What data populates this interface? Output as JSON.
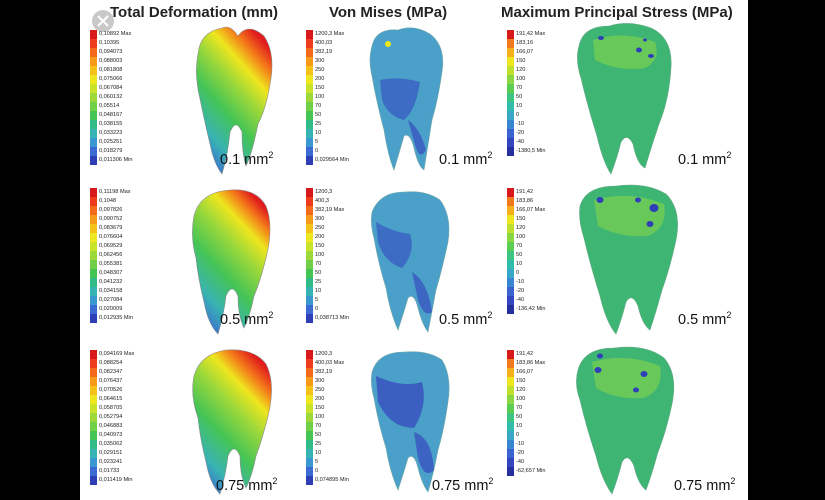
{
  "columns": [
    {
      "title": "Total Deformation (mm)"
    },
    {
      "title": "Von Mises (MPa)"
    },
    {
      "title": "Maximum Principal Stress (MPa)"
    }
  ],
  "area_unit_sup": "2",
  "rows": [
    {
      "area_value": "0.1 mm"
    },
    {
      "area_value": "0.5 mm"
    },
    {
      "area_value": "0.75 mm"
    }
  ],
  "legends": {
    "deformation": [
      [
        "0,10892 Max",
        "0,10395",
        "0,094073",
        "0,088003",
        "0,081808",
        "0,075066",
        "0,067084",
        "0,060132",
        "0,05514",
        "0,048167",
        "0,038155",
        "0,033223",
        "0,025251",
        "0,018279",
        "0,011306 Min"
      ],
      [
        "0,11198 Max",
        "0,1048",
        "0,097826",
        "0,090752",
        "0,083679",
        "0,076604",
        "0,069529",
        "0,062456",
        "0,055381",
        "0,048307",
        "0,041232",
        "0,034158",
        "0,027084",
        "0,020009",
        "0,012935 Min"
      ],
      [
        "0,094169 Max",
        "0,088254",
        "0,082347",
        "0,076437",
        "0,070526",
        "0,064615",
        "0,058705",
        "0,052794",
        "0,046883",
        "0,040973",
        "0,035062",
        "0,029151",
        "0,023241",
        "0,01733",
        "0,011419 Min"
      ]
    ],
    "vonmises": [
      [
        "1200,3 Max",
        "400,03",
        "382,19",
        "300",
        "250",
        "200",
        "150",
        "100",
        "70",
        "50",
        "25",
        "10",
        "5",
        "0",
        "0,029564 Min"
      ],
      [
        "1200,3",
        "400,3",
        "382,19 Max",
        "300",
        "250",
        "200",
        "150",
        "100",
        "70",
        "50",
        "25",
        "10",
        "5",
        "0",
        "0,038713 Min"
      ],
      [
        "1200,3",
        "400,03 Max",
        "382,19",
        "300",
        "250",
        "200",
        "150",
        "100",
        "70",
        "50",
        "25",
        "10",
        "5",
        "0",
        "0,074895 Min"
      ]
    ],
    "principal": [
      [
        "191,42 Max",
        "183,16",
        "166,07",
        "150",
        "120",
        "100",
        "70",
        "50",
        "10",
        "0",
        "-10",
        "-20",
        "-40",
        "-1380,5 Min"
      ],
      [
        "191,42",
        "183,86",
        "166,07 Max",
        "150",
        "120",
        "100",
        "70",
        "50",
        "10",
        "0",
        "-10",
        "-20",
        "-40",
        "-136,42 Min"
      ],
      [
        "191,42",
        "183,86 Max",
        "166,07",
        "150",
        "120",
        "100",
        "70",
        "50",
        "10",
        "0",
        "-10",
        "-20",
        "-40",
        "-62,657 Min"
      ]
    ]
  },
  "legend_colors": [
    "#d7191c",
    "#ee3b1c",
    "#f36b1a",
    "#f79a17",
    "#f6c21a",
    "#eee61e",
    "#c9e22a",
    "#9cd83a",
    "#6fcf47",
    "#45c456",
    "#2fba86",
    "#38b3b3",
    "#3a97cf",
    "#3b6bd2",
    "#2e3fb8"
  ],
  "principal_colors": [
    "#d7191c",
    "#f07a1c",
    "#f6b01c",
    "#eee61e",
    "#bfe02e",
    "#8ad743",
    "#5acd52",
    "#3ec482",
    "#32bcab",
    "#39a8c6",
    "#3a87d1",
    "#3b63cf",
    "#3447c0",
    "#252f9e"
  ]
}
